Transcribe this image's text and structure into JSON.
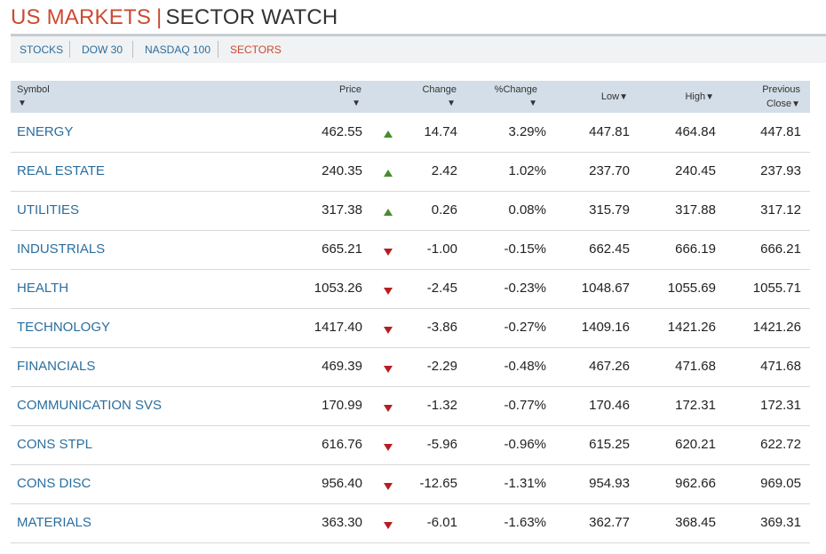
{
  "header": {
    "title_part1": "US MARKETS",
    "separator": "|",
    "title_part2": "SECTOR WATCH"
  },
  "nav": {
    "tabs": [
      {
        "label": "STOCKS",
        "active": false
      },
      {
        "label": "DOW 30",
        "active": false
      },
      {
        "label": "NASDAQ 100",
        "active": false
      },
      {
        "label": "SECTORS",
        "active": true
      }
    ]
  },
  "table": {
    "columns": {
      "symbol": "Symbol",
      "price": "Price",
      "change": "Change",
      "pct_change": "%Change",
      "low": "Low",
      "high": "High",
      "previous_line1": "Previous",
      "previous_line2": "Close"
    },
    "sort_arrow": "▼",
    "rows": [
      {
        "symbol": "ENERGY",
        "price": "462.55",
        "direction": "up",
        "change": "14.74",
        "pct": "3.29%",
        "low": "447.81",
        "high": "464.84",
        "prev": "447.81"
      },
      {
        "symbol": "REAL ESTATE",
        "price": "240.35",
        "direction": "up",
        "change": "2.42",
        "pct": "1.02%",
        "low": "237.70",
        "high": "240.45",
        "prev": "237.93"
      },
      {
        "symbol": "UTILITIES",
        "price": "317.38",
        "direction": "up",
        "change": "0.26",
        "pct": "0.08%",
        "low": "315.79",
        "high": "317.88",
        "prev": "317.12"
      },
      {
        "symbol": "INDUSTRIALS",
        "price": "665.21",
        "direction": "down",
        "change": "-1.00",
        "pct": "-0.15%",
        "low": "662.45",
        "high": "666.19",
        "prev": "666.21"
      },
      {
        "symbol": "HEALTH",
        "price": "1053.26",
        "direction": "down",
        "change": "-2.45",
        "pct": "-0.23%",
        "low": "1048.67",
        "high": "1055.69",
        "prev": "1055.71"
      },
      {
        "symbol": "TECHNOLOGY",
        "price": "1417.40",
        "direction": "down",
        "change": "-3.86",
        "pct": "-0.27%",
        "low": "1409.16",
        "high": "1421.26",
        "prev": "1421.26"
      },
      {
        "symbol": "FINANCIALS",
        "price": "469.39",
        "direction": "down",
        "change": "-2.29",
        "pct": "-0.48%",
        "low": "467.26",
        "high": "471.68",
        "prev": "471.68"
      },
      {
        "symbol": "COMMUNICATION SVS",
        "price": "170.99",
        "direction": "down",
        "change": "-1.32",
        "pct": "-0.77%",
        "low": "170.46",
        "high": "172.31",
        "prev": "172.31"
      },
      {
        "symbol": "CONS STPL",
        "price": "616.76",
        "direction": "down",
        "change": "-5.96",
        "pct": "-0.96%",
        "low": "615.25",
        "high": "620.21",
        "prev": "622.72"
      },
      {
        "symbol": "CONS DISC",
        "price": "956.40",
        "direction": "down",
        "change": "-12.65",
        "pct": "-1.31%",
        "low": "954.93",
        "high": "962.66",
        "prev": "969.05"
      },
      {
        "symbol": "MATERIALS",
        "price": "363.30",
        "direction": "down",
        "change": "-6.01",
        "pct": "-1.63%",
        "low": "362.77",
        "high": "368.45",
        "prev": "369.31"
      }
    ]
  },
  "colors": {
    "brand_red": "#cc4a31",
    "link_blue": "#2a6e9e",
    "up_green": "#4a8b2f",
    "down_red": "#b41e23",
    "header_bg": "#d3dee8"
  },
  "icons": {
    "up": "triangle-up-icon",
    "down": "triangle-down-icon",
    "sort": "sort-down-arrow-icon"
  }
}
